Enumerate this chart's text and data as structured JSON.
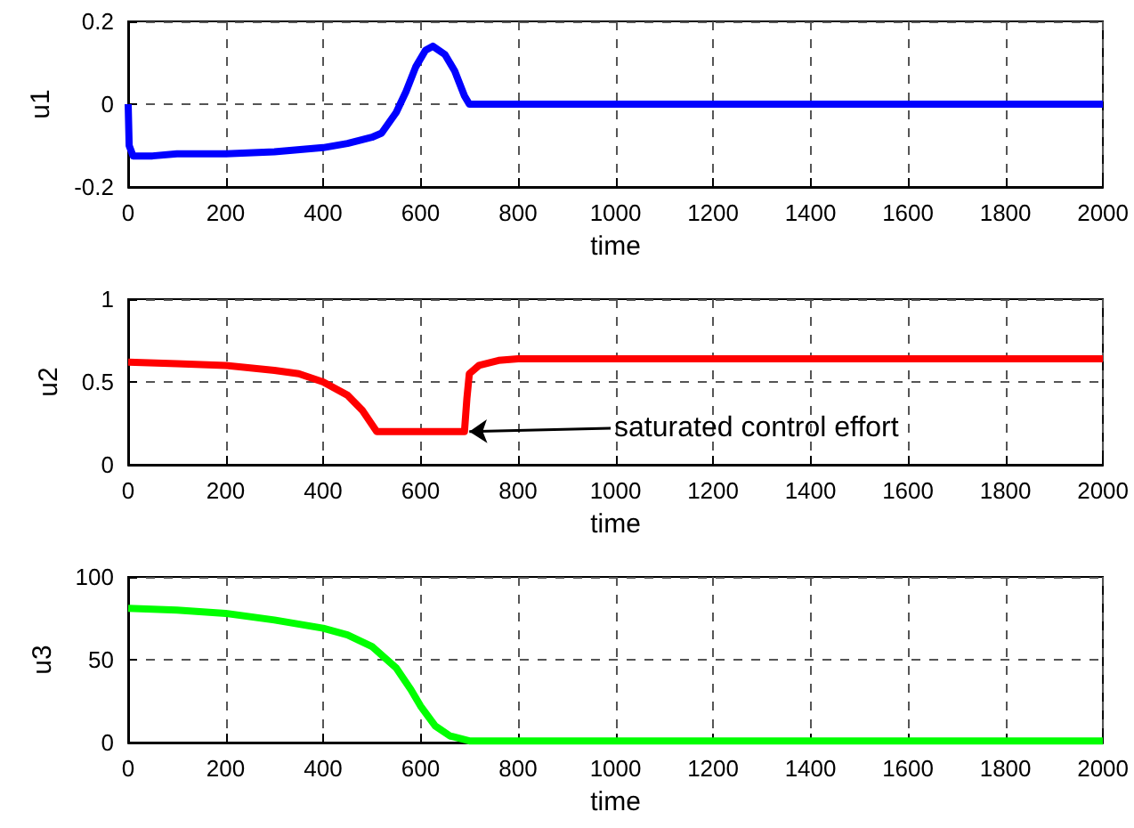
{
  "chart_data": [
    {
      "type": "line",
      "xlabel": "time",
      "ylabel": "u1",
      "x": [
        0,
        2,
        10,
        50,
        100,
        200,
        300,
        400,
        450,
        500,
        520,
        550,
        570,
        590,
        610,
        625,
        650,
        670,
        690,
        700,
        2000
      ],
      "series": [
        {
          "color": "#0000ff",
          "values": [
            0,
            -0.1,
            -0.125,
            -0.125,
            -0.12,
            -0.12,
            -0.115,
            -0.105,
            -0.095,
            -0.08,
            -0.07,
            -0.02,
            0.03,
            0.09,
            0.13,
            0.14,
            0.12,
            0.08,
            0.02,
            0,
            0
          ]
        }
      ],
      "xlim": [
        0,
        2000
      ],
      "xticks": [
        0,
        200,
        400,
        600,
        800,
        1000,
        1200,
        1400,
        1600,
        1800,
        2000
      ],
      "ylim": [
        -0.2,
        0.2
      ],
      "yticks": [
        -0.2,
        0,
        0.2
      ],
      "grid": true,
      "line_style": "solid",
      "marker": "none"
    },
    {
      "type": "line",
      "xlabel": "time",
      "ylabel": "u2",
      "x": [
        0,
        100,
        200,
        300,
        350,
        400,
        450,
        480,
        510,
        690,
        695,
        700,
        720,
        760,
        800,
        2000
      ],
      "series": [
        {
          "color": "#ff0000",
          "values": [
            0.62,
            0.61,
            0.6,
            0.57,
            0.55,
            0.5,
            0.42,
            0.33,
            0.2,
            0.2,
            0.4,
            0.55,
            0.6,
            0.63,
            0.64,
            0.64
          ]
        }
      ],
      "xlim": [
        0,
        2000
      ],
      "xticks": [
        0,
        200,
        400,
        600,
        800,
        1000,
        1200,
        1400,
        1600,
        1800,
        2000
      ],
      "ylim": [
        0,
        1
      ],
      "yticks": [
        0,
        0.5,
        1
      ],
      "grid": true,
      "line_style": "solid",
      "marker": "none",
      "annotations": [
        {
          "text": "saturated control effort",
          "x": 700,
          "y": 0.2
        }
      ]
    },
    {
      "type": "line",
      "xlabel": "time",
      "ylabel": "u3",
      "x": [
        0,
        100,
        200,
        300,
        400,
        450,
        500,
        550,
        580,
        600,
        630,
        660,
        700,
        720,
        2000
      ],
      "series": [
        {
          "color": "#00ff00",
          "values": [
            81,
            80,
            78,
            74,
            69,
            65,
            58,
            45,
            32,
            22,
            10,
            4,
            1,
            1,
            1
          ]
        }
      ],
      "xlim": [
        0,
        2000
      ],
      "xticks": [
        0,
        200,
        400,
        600,
        800,
        1000,
        1200,
        1400,
        1600,
        1800,
        2000
      ],
      "ylim": [
        0,
        100
      ],
      "yticks": [
        0,
        50,
        100
      ],
      "grid": true,
      "line_style": "solid",
      "marker": "none"
    }
  ]
}
